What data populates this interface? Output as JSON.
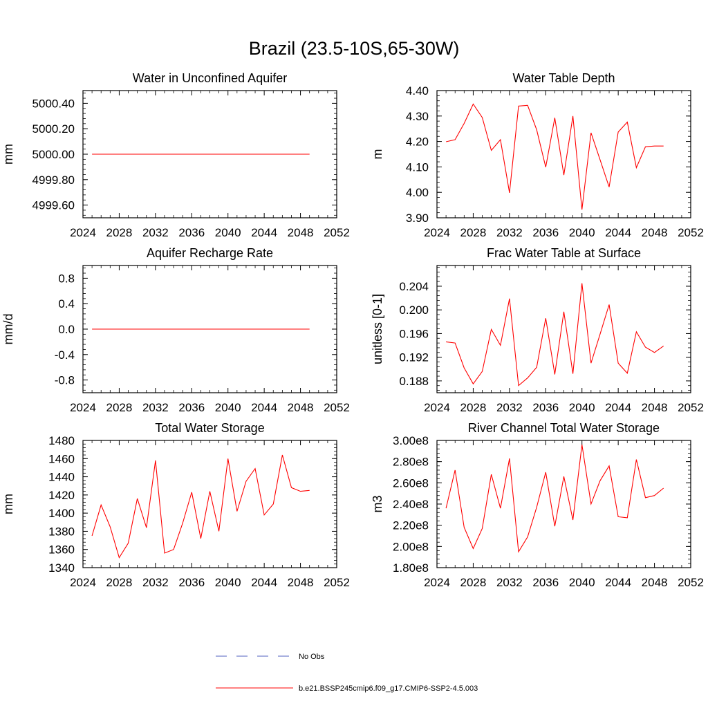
{
  "figure": {
    "title": "Brazil (23.5-10S,65-30W)"
  },
  "colors": {
    "model_line": "#ff0000",
    "obs_line": "#5060c0",
    "axis": "#000000"
  },
  "legend": {
    "items": [
      {
        "label": "No Obs",
        "style": "dashed",
        "color": "#5060c0"
      },
      {
        "label": "b.e21.BSSP245cmip6.f09_g17.CMIP6-SSP2-4.5.003",
        "style": "solid",
        "color": "#ff0000"
      }
    ]
  },
  "chart_data": [
    {
      "type": "line",
      "title": "Water in Unconfined Aquifer",
      "ylabel": "mm",
      "xlim": [
        2024,
        2052
      ],
      "ylim": [
        4999.5,
        5000.5
      ],
      "xticks": [
        2024,
        2028,
        2032,
        2036,
        2040,
        2044,
        2048,
        2052
      ],
      "yticks": [
        4999.6,
        4999.8,
        5000.0,
        5000.2,
        5000.4
      ],
      "yticklabels": [
        "4999.60",
        "4999.80",
        "5000.00",
        "5000.20",
        "5000.40"
      ],
      "x": [
        2025,
        2026,
        2027,
        2028,
        2029,
        2030,
        2031,
        2032,
        2033,
        2034,
        2035,
        2036,
        2037,
        2038,
        2039,
        2040,
        2041,
        2042,
        2043,
        2044,
        2045,
        2046,
        2047,
        2048,
        2049
      ],
      "series": [
        {
          "name": "b.e21.BSSP245cmip6.f09_g17.CMIP6-SSP2-4.5.003",
          "values": [
            5000,
            5000,
            5000,
            5000,
            5000,
            5000,
            5000,
            5000,
            5000,
            5000,
            5000,
            5000,
            5000,
            5000,
            5000,
            5000,
            5000,
            5000,
            5000,
            5000,
            5000,
            5000,
            5000,
            5000,
            5000
          ]
        }
      ]
    },
    {
      "type": "line",
      "title": "Water Table Depth",
      "ylabel": "m",
      "xlim": [
        2024,
        2052
      ],
      "ylim": [
        3.9,
        4.4
      ],
      "xticks": [
        2024,
        2028,
        2032,
        2036,
        2040,
        2044,
        2048,
        2052
      ],
      "yticks": [
        3.9,
        4.0,
        4.1,
        4.2,
        4.3,
        4.4
      ],
      "yticklabels": [
        "3.90",
        "4.00",
        "4.10",
        "4.20",
        "4.30",
        "4.40"
      ],
      "x": [
        2025,
        2026,
        2027,
        2028,
        2029,
        2030,
        2031,
        2032,
        2033,
        2034,
        2035,
        2036,
        2037,
        2038,
        2039,
        2040,
        2041,
        2042,
        2043,
        2044,
        2045,
        2046,
        2047,
        2048,
        2049
      ],
      "series": [
        {
          "name": "b.e21.BSSP245cmip6.f09_g17.CMIP6-SSP2-4.5.003",
          "values": [
            4.199,
            4.207,
            4.271,
            4.347,
            4.294,
            4.165,
            4.207,
            3.998,
            4.339,
            4.342,
            4.246,
            4.099,
            4.293,
            4.068,
            4.3,
            3.932,
            4.234,
            4.128,
            4.021,
            4.237,
            4.276,
            4.097,
            4.179,
            4.182,
            4.182
          ]
        }
      ]
    },
    {
      "type": "line",
      "title": "Aquifer Recharge Rate",
      "ylabel": "mm/d",
      "xlim": [
        2024,
        2052
      ],
      "ylim": [
        -1.0,
        1.0
      ],
      "xticks": [
        2024,
        2028,
        2032,
        2036,
        2040,
        2044,
        2048,
        2052
      ],
      "yticks": [
        -0.8,
        -0.4,
        0.0,
        0.4,
        0.8
      ],
      "yticklabels": [
        "-0.8",
        "-0.4",
        "0.0",
        "0.4",
        "0.8"
      ],
      "x": [
        2025,
        2026,
        2027,
        2028,
        2029,
        2030,
        2031,
        2032,
        2033,
        2034,
        2035,
        2036,
        2037,
        2038,
        2039,
        2040,
        2041,
        2042,
        2043,
        2044,
        2045,
        2046,
        2047,
        2048,
        2049
      ],
      "series": [
        {
          "name": "b.e21.BSSP245cmip6.f09_g17.CMIP6-SSP2-4.5.003",
          "values": [
            0,
            0,
            0,
            0,
            0,
            0,
            0,
            0,
            0,
            0,
            0,
            0,
            0,
            0,
            0,
            0,
            0,
            0,
            0,
            0,
            0,
            0,
            0,
            0,
            0
          ]
        }
      ]
    },
    {
      "type": "line",
      "title": "Frac Water Table at Surface",
      "ylabel": "unitless [0-1]",
      "xlim": [
        2024,
        2052
      ],
      "ylim": [
        0.186,
        0.2075
      ],
      "xticks": [
        2024,
        2028,
        2032,
        2036,
        2040,
        2044,
        2048,
        2052
      ],
      "yticks": [
        0.188,
        0.192,
        0.196,
        0.2,
        0.204
      ],
      "yticklabels": [
        "0.188",
        "0.192",
        "0.196",
        "0.200",
        "0.204"
      ],
      "x": [
        2025,
        2026,
        2027,
        2028,
        2029,
        2030,
        2031,
        2032,
        2033,
        2034,
        2035,
        2036,
        2037,
        2038,
        2039,
        2040,
        2041,
        2042,
        2043,
        2044,
        2045,
        2046,
        2047,
        2048,
        2049
      ],
      "series": [
        {
          "name": "b.e21.BSSP245cmip6.f09_g17.CMIP6-SSP2-4.5.003",
          "values": [
            0.1946,
            0.1944,
            0.1902,
            0.1875,
            0.1896,
            0.1967,
            0.194,
            0.2019,
            0.1872,
            0.1885,
            0.1903,
            0.1986,
            0.1891,
            0.1997,
            0.1892,
            0.2045,
            0.191,
            0.1959,
            0.2009,
            0.191,
            0.1893,
            0.1963,
            0.1937,
            0.1928,
            0.1939
          ]
        }
      ]
    },
    {
      "type": "line",
      "title": "Total Water Storage",
      "ylabel": "mm",
      "xlim": [
        2024,
        2052
      ],
      "ylim": [
        1340,
        1480
      ],
      "xticks": [
        2024,
        2028,
        2032,
        2036,
        2040,
        2044,
        2048,
        2052
      ],
      "yticks": [
        1340,
        1360,
        1380,
        1400,
        1420,
        1440,
        1460,
        1480
      ],
      "yticklabels": [
        "1340",
        "1360",
        "1380",
        "1400",
        "1420",
        "1440",
        "1460",
        "1480"
      ],
      "x": [
        2025,
        2026,
        2027,
        2028,
        2029,
        2030,
        2031,
        2032,
        2033,
        2034,
        2035,
        2036,
        2037,
        2038,
        2039,
        2040,
        2041,
        2042,
        2043,
        2044,
        2045,
        2046,
        2047,
        2048,
        2049
      ],
      "series": [
        {
          "name": "b.e21.BSSP245cmip6.f09_g17.CMIP6-SSP2-4.5.003",
          "values": [
            1375,
            1409,
            1385,
            1351,
            1367,
            1416,
            1384,
            1458,
            1356,
            1360,
            1389,
            1423,
            1372,
            1424,
            1380,
            1460,
            1402,
            1435,
            1449,
            1398,
            1410,
            1464,
            1428,
            1424,
            1425
          ]
        }
      ]
    },
    {
      "type": "line",
      "title": "River Channel Total Water Storage",
      "ylabel": "m3",
      "xlim": [
        2024,
        2052
      ],
      "ylim": [
        180000000,
        300000000
      ],
      "xticks": [
        2024,
        2028,
        2032,
        2036,
        2040,
        2044,
        2048,
        2052
      ],
      "yticks": [
        180000000,
        200000000,
        220000000,
        240000000,
        260000000,
        280000000,
        300000000
      ],
      "yticklabels": [
        "1.80e8",
        "2.00e8",
        "2.20e8",
        "2.40e8",
        "2.60e8",
        "2.80e8",
        "3.00e8"
      ],
      "x": [
        2025,
        2026,
        2027,
        2028,
        2029,
        2030,
        2031,
        2032,
        2033,
        2034,
        2035,
        2036,
        2037,
        2038,
        2039,
        2040,
        2041,
        2042,
        2043,
        2044,
        2045,
        2046,
        2047,
        2048,
        2049
      ],
      "series": [
        {
          "name": "b.e21.BSSP245cmip6.f09_g17.CMIP6-SSP2-4.5.003",
          "values": [
            236000000,
            272000000,
            218000000,
            198000000,
            217000000,
            268000000,
            236000000,
            283000000,
            195000000,
            209000000,
            237000000,
            270000000,
            219000000,
            266000000,
            225000000,
            296000000,
            240000000,
            262000000,
            276000000,
            228000000,
            227000000,
            282000000,
            246000000,
            248000000,
            255000000
          ]
        }
      ]
    }
  ]
}
